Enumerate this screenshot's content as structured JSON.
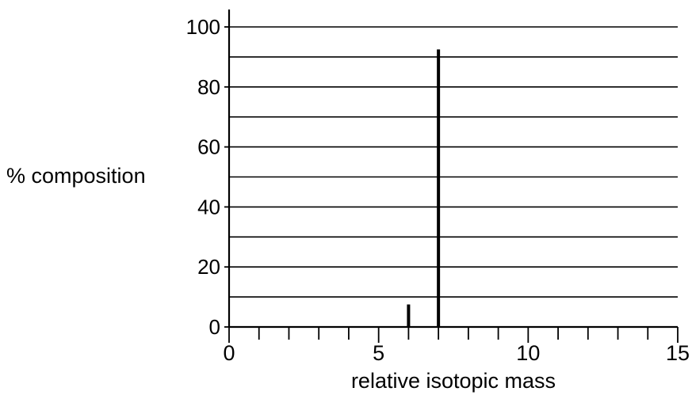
{
  "chart_data": {
    "type": "bar",
    "title": "",
    "xlabel": "relative isotopic mass",
    "ylabel": "% composition",
    "xlim": [
      0,
      15
    ],
    "ylim": [
      0,
      100
    ],
    "x_ticks": [
      0,
      5,
      10,
      15
    ],
    "x_minor_step": 1,
    "y_ticks": [
      0,
      20,
      40,
      60,
      80,
      100
    ],
    "y_grid_step": 10,
    "grid": "horizontal",
    "legend": "none",
    "series": [
      {
        "x": [
          6,
          7
        ],
        "values": [
          7.5,
          92.5
        ]
      }
    ],
    "colors": {
      "bar": "#000000",
      "grid": "#000000",
      "axis": "#000000",
      "background": "#ffffff"
    }
  }
}
